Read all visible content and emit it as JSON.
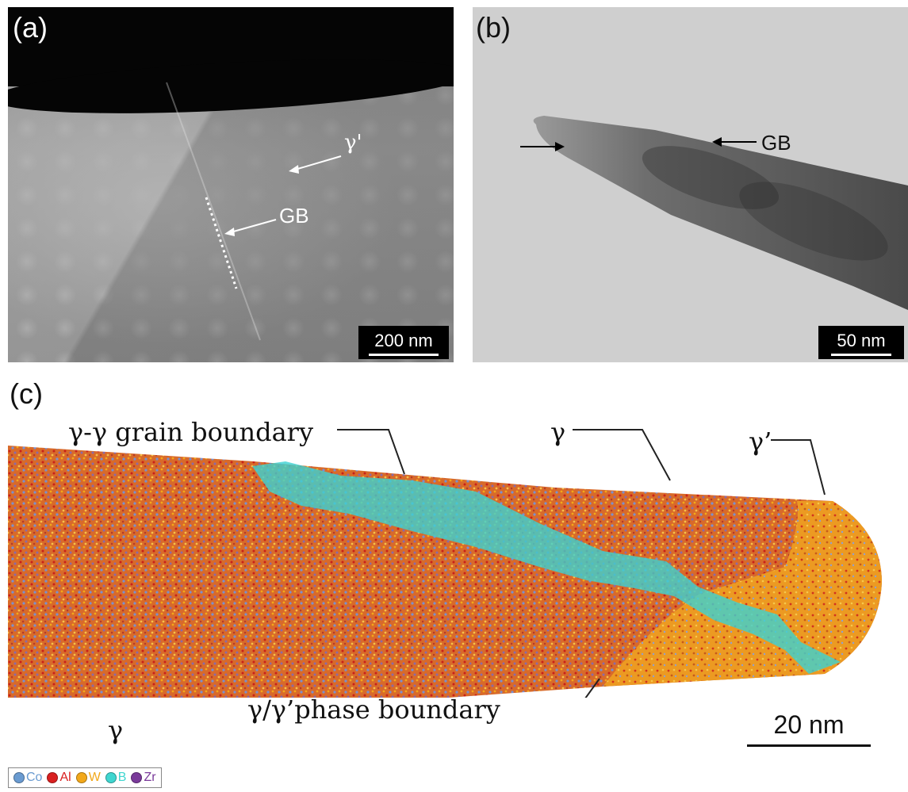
{
  "panel_a": {
    "label": "(a)",
    "annotations": {
      "gamma_prime": "γ'",
      "gb": "GB"
    },
    "scale_bar": "200 nm"
  },
  "panel_b": {
    "label": "(b)",
    "annotations": {
      "gb": "GB"
    },
    "scale_bar": "50 nm"
  },
  "panel_c": {
    "label": "(c)",
    "annotations": {
      "gg_grain_boundary": "γ-γ grain boundary",
      "gamma_top": "γ",
      "gamma_prime": "γ’",
      "gamma_bottom": "γ",
      "phase_boundary": "γ/γ’phase boundary"
    },
    "scale_bar": "20 nm"
  },
  "legend": [
    {
      "symbol": "Co",
      "color": "#6a9bd1"
    },
    {
      "symbol": "Al",
      "color": "#d92020"
    },
    {
      "symbol": "W",
      "color": "#f2a81a"
    },
    {
      "symbol": "B",
      "color": "#3fd6d0"
    },
    {
      "symbol": "Zr",
      "color": "#7a3a9a"
    }
  ]
}
